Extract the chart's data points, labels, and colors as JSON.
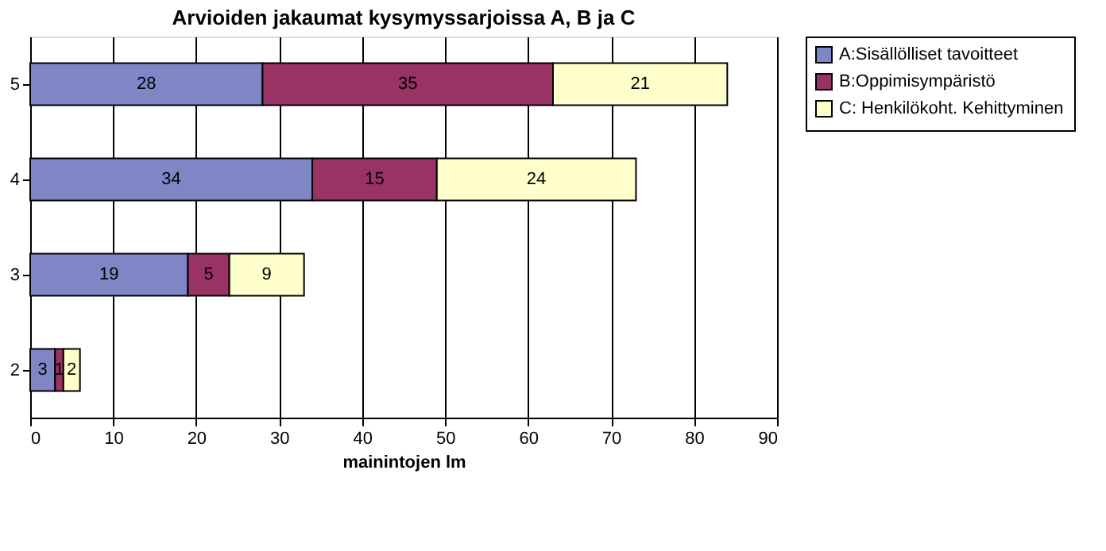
{
  "chart_data": {
    "type": "bar",
    "orientation": "horizontal",
    "stacked": true,
    "title": "Arvioiden jakaumat kysymyssarjoissa  A, B ja C",
    "xlabel": "mainintojen lm",
    "categories": [
      "5",
      "4",
      "3",
      "2"
    ],
    "series": [
      {
        "name": "A:Sisällölliset tavoitteet",
        "color": "#7f86c6",
        "values": [
          28,
          34,
          19,
          3
        ]
      },
      {
        "name": "B:Oppimisympäristö",
        "color": "#993366",
        "values": [
          35,
          15,
          5,
          1
        ]
      },
      {
        "name": "C: Henkilökoht. Kehittyminen",
        "color": "#ffffcc",
        "values": [
          21,
          24,
          9,
          2
        ]
      }
    ],
    "xlim": [
      0,
      90
    ],
    "xticks": [
      0,
      10,
      20,
      30,
      40,
      50,
      60,
      70,
      80,
      90
    ],
    "grid": "x",
    "legend": "right",
    "data_labels": true
  }
}
